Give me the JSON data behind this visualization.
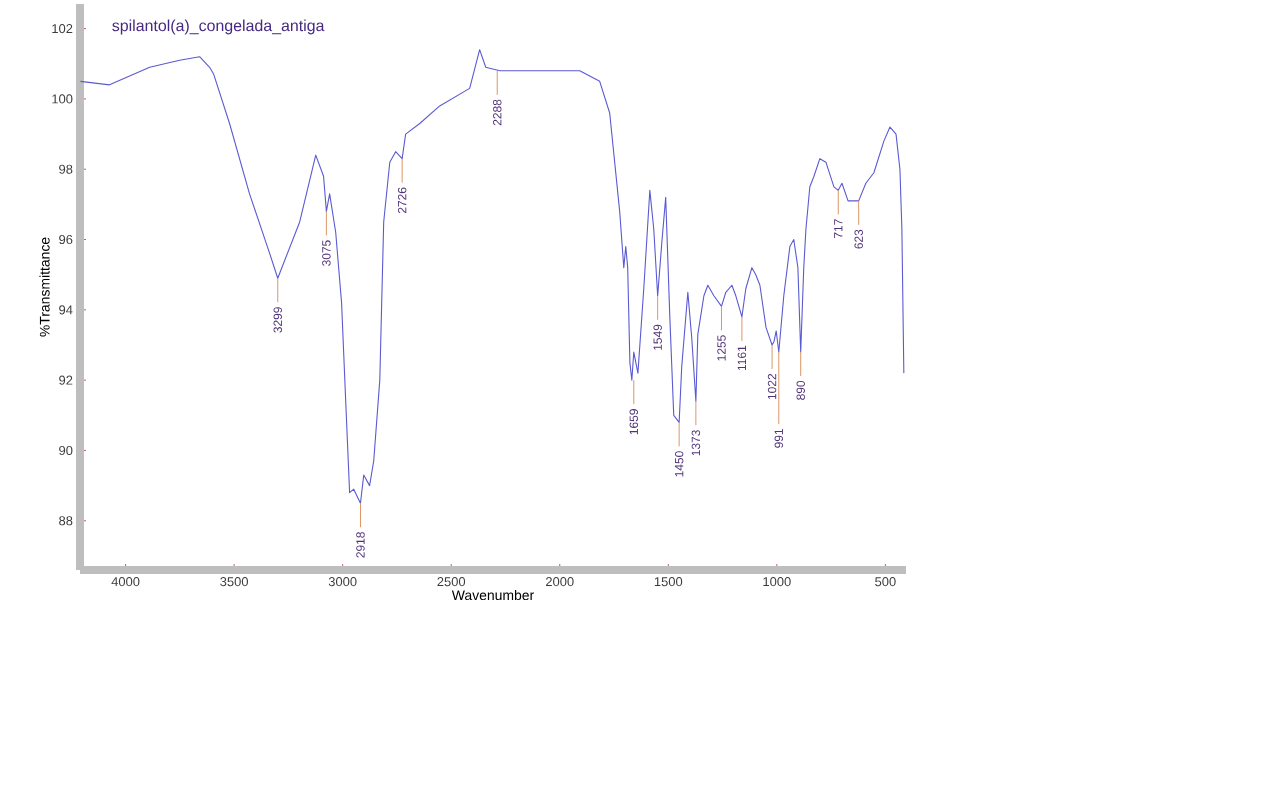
{
  "chart_data": {
    "type": "line",
    "title": "spilantol(a)_congelada_antiga",
    "xlabel": "Wavenumber",
    "ylabel": "%Transmittance",
    "xlim": [
      4210,
      405
    ],
    "ylim": [
      86.6,
      102.7
    ],
    "xticks": [
      4000,
      3500,
      3000,
      2500,
      2000,
      1500,
      1000,
      500
    ],
    "yticks": [
      88,
      90,
      92,
      94,
      96,
      98,
      100,
      102
    ],
    "grid": false,
    "series": [
      {
        "color": "#5a5ad2",
        "x": [
          4208,
          4074,
          3889,
          3751,
          3659,
          3613,
          3594,
          3521,
          3429,
          3336,
          3299,
          3198,
          3124,
          3088,
          3075,
          3060,
          3032,
          3005,
          2986,
          2968,
          2949,
          2918,
          2903,
          2876,
          2857,
          2829,
          2811,
          2783,
          2756,
          2726,
          2710,
          2645,
          2553,
          2415,
          2369,
          2341,
          2276,
          2138,
          1908,
          1816,
          1770,
          1724,
          1705,
          1696,
          1687,
          1677,
          1668,
          1659,
          1640,
          1613,
          1585,
          1567,
          1549,
          1530,
          1512,
          1493,
          1475,
          1450,
          1438,
          1410,
          1392,
          1373,
          1364,
          1336,
          1318,
          1290,
          1255,
          1235,
          1207,
          1189,
          1161,
          1143,
          1115,
          1097,
          1078,
          1050,
          1022,
          1013,
          1003,
          991,
          968,
          940,
          922,
          903,
          890,
          876,
          866,
          848,
          829,
          802,
          774,
          737,
          717,
          700,
          672,
          623,
          590,
          553,
          507,
          479,
          451,
          433,
          424,
          415
        ],
        "values": [
          100.5,
          100.4,
          100.9,
          101.1,
          101.2,
          100.9,
          100.7,
          99.3,
          97.3,
          95.6,
          94.9,
          96.5,
          98.4,
          97.8,
          96.8,
          97.3,
          96.2,
          94.2,
          91.4,
          88.8,
          88.9,
          88.5,
          89.3,
          89.0,
          89.7,
          92.0,
          96.5,
          98.2,
          98.5,
          98.3,
          99.0,
          99.3,
          99.8,
          100.3,
          101.4,
          100.9,
          100.8,
          100.8,
          100.8,
          100.5,
          99.6,
          96.8,
          95.2,
          95.8,
          95.2,
          92.5,
          92.0,
          92.8,
          92.2,
          94.6,
          97.4,
          96.3,
          94.4,
          95.9,
          97.2,
          93.8,
          91.0,
          90.8,
          92.4,
          94.5,
          93.2,
          91.4,
          93.3,
          94.4,
          94.7,
          94.4,
          94.1,
          94.5,
          94.7,
          94.4,
          93.8,
          94.6,
          95.2,
          95.0,
          94.7,
          93.5,
          93.0,
          93.1,
          93.4,
          92.8,
          94.4,
          95.8,
          96.0,
          95.2,
          92.8,
          95.2,
          96.3,
          97.5,
          97.8,
          98.3,
          98.2,
          97.5,
          97.4,
          97.6,
          97.1,
          97.1,
          97.6,
          97.9,
          98.8,
          99.2,
          99.0,
          98.0,
          96.3,
          92.2
        ]
      }
    ],
    "annotations": [
      {
        "text": "3299",
        "x": 3299,
        "y": 94.9
      },
      {
        "text": "3075",
        "x": 3075,
        "y": 96.8
      },
      {
        "text": "2918",
        "x": 2918,
        "y": 88.5
      },
      {
        "text": "2726",
        "x": 2726,
        "y": 98.3
      },
      {
        "text": "2288",
        "x": 2288,
        "y": 100.8
      },
      {
        "text": "1659",
        "x": 1659,
        "y": 92.0
      },
      {
        "text": "1549",
        "x": 1549,
        "y": 94.4
      },
      {
        "text": "1450",
        "x": 1450,
        "y": 90.8
      },
      {
        "text": "1373",
        "x": 1373,
        "y": 91.4
      },
      {
        "text": "1255",
        "x": 1255,
        "y": 94.1
      },
      {
        "text": "1161",
        "x": 1161,
        "y": 93.8
      },
      {
        "text": "1022",
        "x": 1022,
        "y": 93.0
      },
      {
        "text": "991",
        "x": 991,
        "y": 92.8
      },
      {
        "text": "890",
        "x": 890,
        "y": 92.8
      },
      {
        "text": "717",
        "x": 717,
        "y": 97.4
      },
      {
        "text": "623",
        "x": 623,
        "y": 97.1
      }
    ]
  }
}
